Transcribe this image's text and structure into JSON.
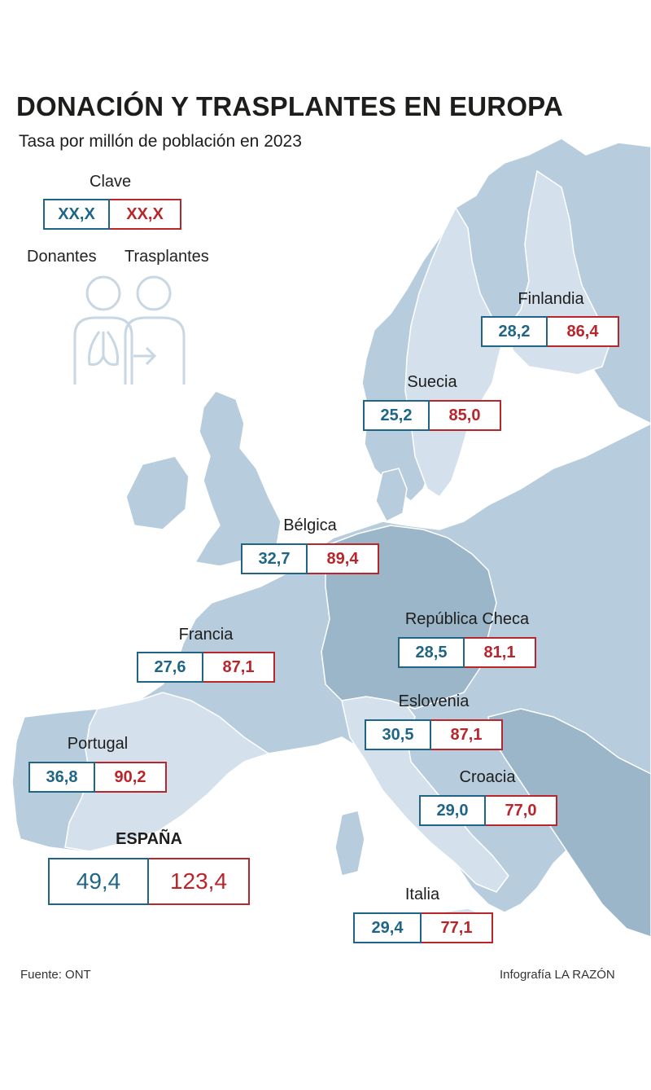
{
  "title": "DONACIÓN Y TRASPLANTES EN EUROPA",
  "subtitle": "Tasa por millón de población en 2023",
  "key": {
    "title": "Clave",
    "donors_placeholder": "XX,X",
    "transplants_placeholder": "XX,X",
    "donors_label": "Donantes",
    "transplants_label": "Trasplantes",
    "icon": "people-lungs-icon"
  },
  "colors": {
    "donors": "#1f6585",
    "transplants": "#b8262c",
    "land": "#b7ccdc",
    "highlight_land": "#d4e1ec",
    "dark_land": "#9cb6c9"
  },
  "countries": {
    "finlandia": {
      "name": "Finlandia",
      "donors": "28,2",
      "transplants": "86,4"
    },
    "suecia": {
      "name": "Suecia",
      "donors": "25,2",
      "transplants": "85,0"
    },
    "belgica": {
      "name": "Bélgica",
      "donors": "32,7",
      "transplants": "89,4"
    },
    "francia": {
      "name": "Francia",
      "donors": "27,6",
      "transplants": "87,1"
    },
    "republica_checa": {
      "name": "República Checa",
      "donors": "28,5",
      "transplants": "81,1"
    },
    "eslovenia": {
      "name": "Eslovenia",
      "donors": "30,5",
      "transplants": "87,1"
    },
    "portugal": {
      "name": "Portugal",
      "donors": "36,8",
      "transplants": "90,2"
    },
    "croacia": {
      "name": "Croacia",
      "donors": "29,0",
      "transplants": "77,0"
    },
    "espana": {
      "name": "ESPAÑA",
      "donors": "49,4",
      "transplants": "123,4"
    },
    "italia": {
      "name": "Italia",
      "donors": "29,4",
      "transplants": "77,1"
    }
  },
  "footer": {
    "source": "Fuente: ONT",
    "credit": "Infografía LA RAZÓN"
  }
}
